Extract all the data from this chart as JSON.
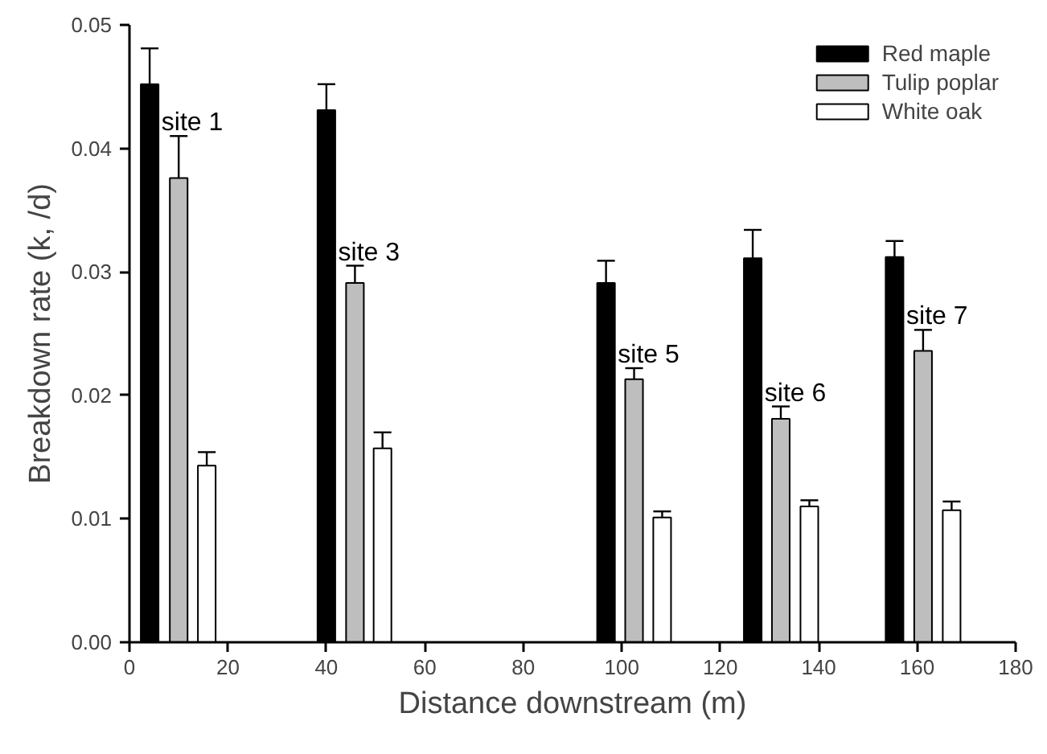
{
  "chart_data": {
    "type": "bar",
    "xlabel": "Distance downstream (m)",
    "ylabel": "Breakdown rate (k, /d)",
    "series": [
      {
        "name": "Red maple",
        "color": "#000000",
        "x": [
          4.1,
          40,
          96.8,
          126.6,
          155.4
        ],
        "values": [
          0.0452,
          0.0431,
          0.0291,
          0.0311,
          0.0312
        ],
        "errors": [
          [
            0.0452,
            0.0481
          ],
          [
            0.0431,
            0.0452
          ],
          [
            0.0291,
            0.0309
          ],
          [
            0.0311,
            0.0334
          ],
          [
            0.0312,
            0.0325
          ]
        ]
      },
      {
        "name": "Tulip poplar",
        "color": "#bebebe",
        "x": [
          10,
          45.8,
          102.5,
          132.3,
          161.2
        ],
        "values": [
          0.0376,
          0.0291,
          0.0213,
          0.0181,
          0.0236
        ],
        "errors": [
          [
            0.0376,
            0.041
          ],
          [
            0.0291,
            0.0305
          ],
          [
            0.0213,
            0.0222
          ],
          [
            0.0181,
            0.0191
          ],
          [
            0.0236,
            0.0253
          ]
        ]
      },
      {
        "name": "White oak",
        "color": "#ffffff",
        "x": [
          15.7,
          51.4,
          108.2,
          138.1,
          167
        ],
        "values": [
          0.0143,
          0.0157,
          0.0101,
          0.011,
          0.0107
        ],
        "errors": [
          [
            0.0143,
            0.0154
          ],
          [
            0.0157,
            0.017
          ],
          [
            0.0101,
            0.0106
          ],
          [
            0.011,
            0.0115
          ],
          [
            0.0107,
            0.0114
          ]
        ]
      }
    ],
    "annotations": [
      "site 1",
      "site 3",
      "site 5",
      "site 6",
      "site 7"
    ],
    "xlim": [
      0,
      180
    ],
    "xticks": [
      0,
      20,
      40,
      60,
      80,
      100,
      120,
      140,
      160,
      180
    ],
    "ylim": [
      0,
      0.05
    ],
    "yticks": [
      {
        "value": 0,
        "label": "0.00"
      },
      {
        "value": 0.01,
        "label": "0.01"
      },
      {
        "value": 0.02,
        "label": "0.02"
      },
      {
        "value": 0.03,
        "label": "0.03"
      },
      {
        "value": 0.04,
        "label": "0.04"
      },
      {
        "value": 0.05,
        "label": "0.05"
      }
    ],
    "legend": "top right",
    "grid": false
  }
}
